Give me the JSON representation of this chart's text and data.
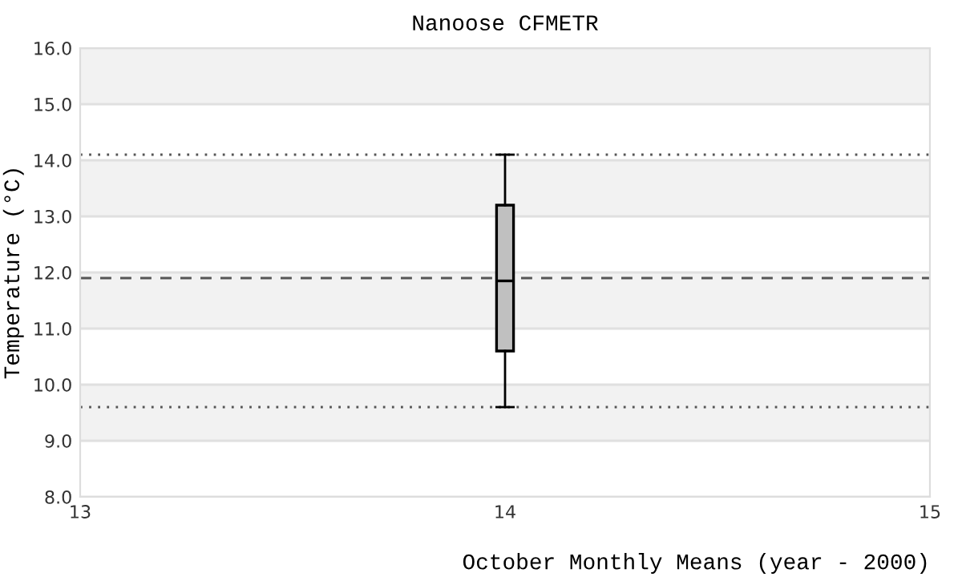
{
  "chart_data": {
    "type": "box",
    "title": "Nanoose CFMETR",
    "xlabel": "October Monthly Means (year - 2000)",
    "ylabel": "Temperature (°C)",
    "x": [
      14
    ],
    "boxes": [
      {
        "low": 9.6,
        "q1": 10.6,
        "median": 11.85,
        "q3": 13.2,
        "high": 14.1
      }
    ],
    "color": "#c0c0c0",
    "xlim": [
      13,
      15
    ],
    "xticks": [
      13,
      14,
      15
    ],
    "ylim": [
      8,
      16
    ],
    "yticks": [
      {
        "value": 8,
        "label": "8.0"
      },
      {
        "value": 9,
        "label": "9.0"
      },
      {
        "value": 10,
        "label": "10.0"
      },
      {
        "value": 11,
        "label": "11.0"
      },
      {
        "value": 12,
        "label": "12.0"
      },
      {
        "value": 13,
        "label": "13.0"
      },
      {
        "value": 14,
        "label": "14.0"
      },
      {
        "value": 15,
        "label": "15.0"
      },
      {
        "value": 16,
        "label": "16.0"
      }
    ],
    "ref_lines": [
      {
        "axis": "y",
        "value": 14.1,
        "line_style": "dotted",
        "color": "#555555"
      },
      {
        "axis": "y",
        "value": 11.9,
        "line_style": "dashed",
        "color": "#555555"
      },
      {
        "axis": "y",
        "value": 9.6,
        "line_style": "dotted",
        "color": "#555555"
      }
    ],
    "bands": [
      {
        "axis": "y",
        "from": 9,
        "to": 10,
        "color": "#f2f2f2"
      },
      {
        "axis": "y",
        "from": 11,
        "to": 12,
        "color": "#f2f2f2"
      },
      {
        "axis": "y",
        "from": 13,
        "to": 14,
        "color": "#f2f2f2"
      },
      {
        "axis": "y",
        "from": 15,
        "to": 16,
        "color": "#f2f2f2"
      }
    ],
    "grid": "y"
  }
}
